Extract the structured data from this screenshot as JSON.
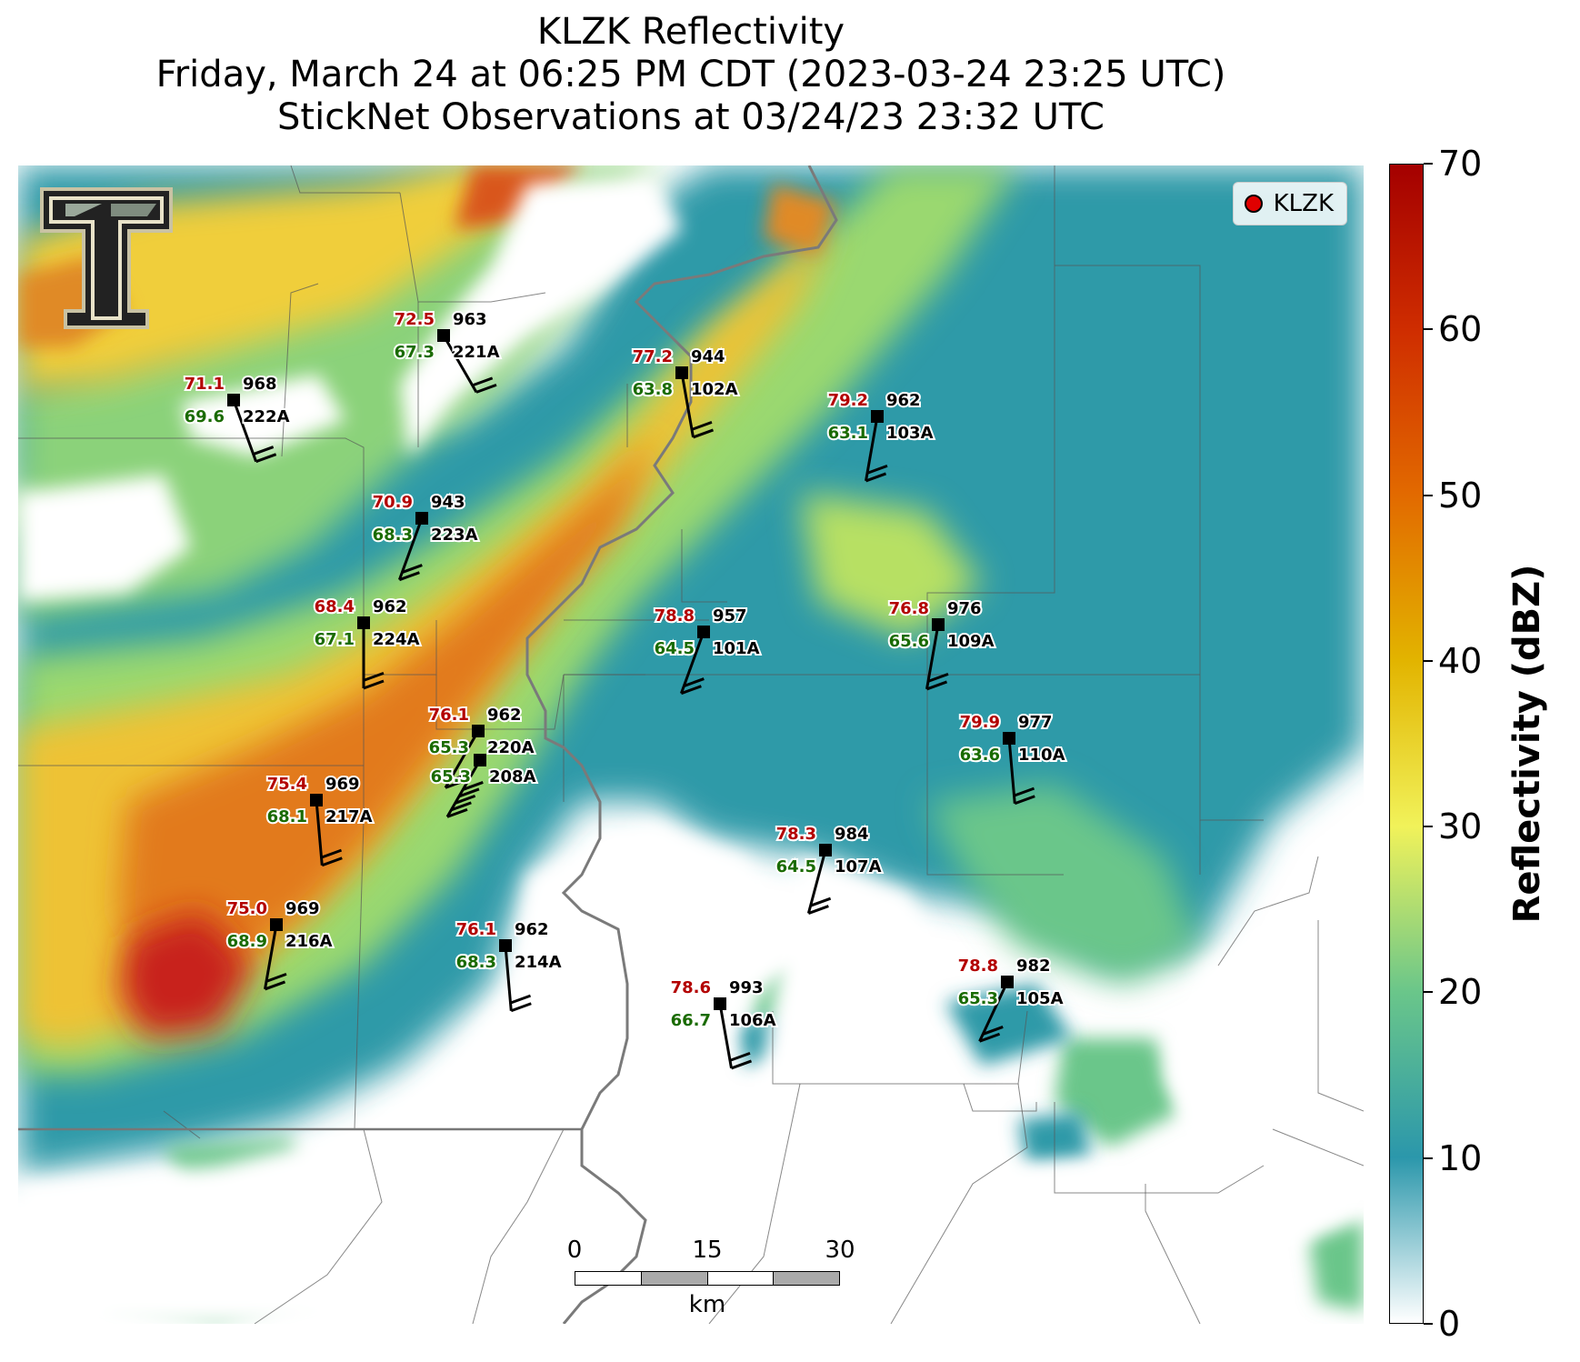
{
  "title": {
    "line1": "KLZK Reflectivity",
    "line2": "Friday, March 24 at 06:25 PM CDT (2023-03-24 23:25 UTC)",
    "line3": "StickNet Observations at 03/24/23 23:32 UTC"
  },
  "legend": {
    "label": "KLZK",
    "marker_color": "#e00000"
  },
  "logo": {
    "text": "T",
    "registered": "®"
  },
  "scale_bar": {
    "labels": [
      "0",
      "15",
      "30"
    ],
    "unit": "km"
  },
  "colorbar": {
    "label": "Reflectivity (dBZ)",
    "min": 0,
    "max": 70,
    "ticks": [
      "0",
      "10",
      "20",
      "30",
      "40",
      "50",
      "60",
      "70"
    ],
    "colors": [
      "#ffffff",
      "#2b97ab",
      "#6ac68a",
      "#f1f25a",
      "#e2b400",
      "#e26a00",
      "#cf2d00",
      "#a40000"
    ]
  },
  "colors": {
    "temperature": "#b30000",
    "dewpoint": "#1a6b00",
    "station": "#000000"
  },
  "stations": [
    {
      "id": "221A",
      "temp": "72.5",
      "dew": "67.3",
      "pres": "963"
    },
    {
      "id": "222A",
      "temp": "71.1",
      "dew": "69.6",
      "pres": "968"
    },
    {
      "id": "102A",
      "temp": "77.2",
      "dew": "63.8",
      "pres": "944"
    },
    {
      "id": "103A",
      "temp": "79.2",
      "dew": "63.1",
      "pres": "962"
    },
    {
      "id": "223A",
      "temp": "70.9",
      "dew": "68.3",
      "pres": "943"
    },
    {
      "id": "224A",
      "temp": "68.4",
      "dew": "67.1",
      "pres": "962"
    },
    {
      "id": "101A",
      "temp": "78.8",
      "dew": "64.5",
      "pres": "957"
    },
    {
      "id": "109A",
      "temp": "76.8",
      "dew": "65.6",
      "pres": "976"
    },
    {
      "id": "220A",
      "temp": "76.1",
      "dew": "65.3",
      "pres": "962"
    },
    {
      "id": "208A",
      "temp": "",
      "dew": "65.3",
      "pres": ""
    },
    {
      "id": "110A",
      "temp": "79.9",
      "dew": "63.6",
      "pres": "977"
    },
    {
      "id": "217A",
      "temp": "75.4",
      "dew": "68.1",
      "pres": "969"
    },
    {
      "id": "107A",
      "temp": "78.3",
      "dew": "64.5",
      "pres": "984"
    },
    {
      "id": "216A",
      "temp": "75.0",
      "dew": "68.9",
      "pres": "969"
    },
    {
      "id": "214A",
      "temp": "76.1",
      "dew": "68.3",
      "pres": "962"
    },
    {
      "id": "106A",
      "temp": "78.6",
      "dew": "66.7",
      "pres": "993"
    },
    {
      "id": "105A",
      "temp": "78.8",
      "dew": "65.3",
      "pres": "982"
    }
  ]
}
